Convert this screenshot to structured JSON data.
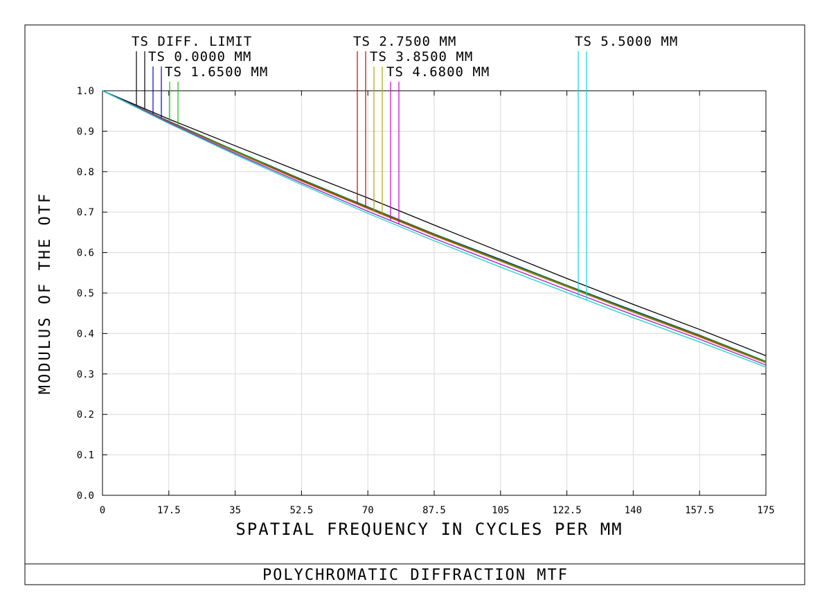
{
  "chart_data": {
    "type": "line",
    "title": "POLYCHROMATIC DIFFRACTION MTF",
    "xlabel": "SPATIAL FREQUENCY IN CYCLES PER MM",
    "ylabel": "MODULUS OF THE OTF",
    "xlim": [
      0,
      175
    ],
    "ylim": [
      0,
      1.0
    ],
    "grid": true,
    "legend_position": "top",
    "x_ticks": [
      "0",
      "17.5",
      "35",
      "52.5",
      "70",
      "87.5",
      "105",
      "122.5",
      "140",
      "157.5",
      "175"
    ],
    "y_ticks": [
      "0.0",
      "0.1",
      "0.2",
      "0.3",
      "0.4",
      "0.5",
      "0.6",
      "0.7",
      "0.8",
      "0.9",
      "1.0"
    ],
    "x_tick_values": [
      0,
      17.5,
      35,
      52.5,
      70,
      87.5,
      105,
      122.5,
      140,
      157.5,
      175
    ],
    "y_tick_values": [
      0,
      0.1,
      0.2,
      0.3,
      0.4,
      0.5,
      0.6,
      0.7,
      0.8,
      0.9,
      1.0
    ],
    "x": [
      0,
      17.5,
      35,
      52.5,
      70,
      87.5,
      105,
      122.5,
      140,
      157.5,
      175
    ],
    "series": [
      {
        "name": "TS DIFF. LIMIT",
        "color": "#000000",
        "values": [
          1.0,
          0.93,
          0.864,
          0.799,
          0.735,
          0.668,
          0.602,
          0.536,
          0.472,
          0.41,
          0.345
        ]
      },
      {
        "name": "TS 0.0000 MM",
        "color": "#0000cc",
        "values": [
          1.0,
          0.925,
          0.852,
          0.781,
          0.713,
          0.646,
          0.583,
          0.519,
          0.457,
          0.396,
          0.331
        ]
      },
      {
        "name": "TS 1.6500 MM",
        "color": "#00cc00",
        "values": [
          1.0,
          0.924,
          0.851,
          0.78,
          0.712,
          0.645,
          0.581,
          0.518,
          0.455,
          0.395,
          0.33
        ]
      },
      {
        "name": "TS 2.7500 MM",
        "color": "#cc0000",
        "values": [
          1.0,
          0.923,
          0.849,
          0.778,
          0.71,
          0.643,
          0.579,
          0.516,
          0.453,
          0.393,
          0.328
        ]
      },
      {
        "name": "TS 3.8500 MM",
        "color": "#aaaa00",
        "values": [
          1.0,
          0.922,
          0.848,
          0.776,
          0.708,
          0.641,
          0.578,
          0.515,
          0.452,
          0.391,
          0.327
        ]
      },
      {
        "name": "TS 4.6800 MM",
        "color": "#cc00cc",
        "values": [
          1.0,
          0.921,
          0.845,
          0.772,
          0.702,
          0.635,
          0.571,
          0.508,
          0.446,
          0.386,
          0.322
        ]
      },
      {
        "name": "TS 5.5000 MM",
        "color": "#00dddd",
        "values": [
          1.0,
          0.919,
          0.842,
          0.768,
          0.697,
          0.629,
          0.564,
          0.501,
          0.439,
          0.379,
          0.317
        ]
      }
    ]
  }
}
